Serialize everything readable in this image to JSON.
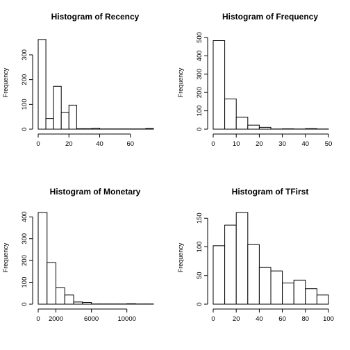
{
  "chart_data": [
    {
      "type": "bar",
      "title": "Histogram of Recency",
      "ylabel": "Frequency",
      "xlabel": "",
      "bins": [
        [
          0,
          5
        ],
        [
          5,
          10
        ],
        [
          10,
          15
        ],
        [
          15,
          20
        ],
        [
          20,
          25
        ],
        [
          25,
          30
        ],
        [
          30,
          35
        ],
        [
          35,
          40
        ],
        [
          40,
          45
        ],
        [
          45,
          50
        ],
        [
          50,
          55
        ],
        [
          55,
          60
        ],
        [
          60,
          65
        ],
        [
          65,
          70
        ],
        [
          70,
          75
        ]
      ],
      "values": [
        362,
        43,
        173,
        68,
        97,
        2,
        2,
        4,
        1,
        1,
        1,
        1,
        1,
        1,
        3
      ],
      "xlim": [
        0,
        75
      ],
      "ylim": [
        0,
        370
      ],
      "xticks": [
        0,
        20,
        40,
        60
      ],
      "yticks": [
        0,
        100,
        200,
        300
      ],
      "yaxis_top": 300
    },
    {
      "type": "bar",
      "title": "Histogram of Frequency",
      "ylabel": "Frequency",
      "xlabel": "",
      "bins": [
        [
          0,
          5
        ],
        [
          5,
          10
        ],
        [
          10,
          15
        ],
        [
          15,
          20
        ],
        [
          20,
          25
        ],
        [
          25,
          30
        ],
        [
          30,
          35
        ],
        [
          35,
          40
        ],
        [
          40,
          45
        ],
        [
          45,
          50
        ]
      ],
      "values": [
        483,
        165,
        65,
        22,
        10,
        1,
        2,
        1,
        3,
        1
      ],
      "xlim": [
        0,
        50
      ],
      "ylim": [
        0,
        500
      ],
      "xticks": [
        0,
        10,
        20,
        30,
        40,
        50
      ],
      "yticks": [
        0,
        100,
        200,
        300,
        400,
        500
      ],
      "yaxis_top": 500
    },
    {
      "type": "bar",
      "title": "Histogram of Monetary",
      "ylabel": "Frequency",
      "xlabel": "",
      "bins": [
        [
          0,
          1000
        ],
        [
          1000,
          2000
        ],
        [
          2000,
          3000
        ],
        [
          3000,
          4000
        ],
        [
          4000,
          5000
        ],
        [
          5000,
          6000
        ],
        [
          6000,
          7000
        ],
        [
          7000,
          8000
        ],
        [
          8000,
          9000
        ],
        [
          9000,
          10000
        ],
        [
          10000,
          11000
        ],
        [
          11000,
          12000
        ],
        [
          12000,
          13000
        ]
      ],
      "values": [
        420,
        190,
        75,
        42,
        10,
        8,
        1,
        1,
        1,
        1,
        2,
        1,
        1
      ],
      "xlim": [
        0,
        13000
      ],
      "ylim": [
        0,
        420
      ],
      "xticks": [
        0,
        2000,
        6000,
        10000
      ],
      "yticks": [
        0,
        100,
        200,
        300,
        400
      ],
      "yaxis_top": 400
    },
    {
      "type": "bar",
      "title": "Histogram of TFirst",
      "ylabel": "Frequency",
      "xlabel": "",
      "bins": [
        [
          0,
          10
        ],
        [
          10,
          20
        ],
        [
          20,
          30
        ],
        [
          30,
          40
        ],
        [
          40,
          50
        ],
        [
          50,
          60
        ],
        [
          60,
          70
        ],
        [
          70,
          80
        ],
        [
          80,
          90
        ],
        [
          90,
          100
        ]
      ],
      "values": [
        102,
        138,
        160,
        104,
        64,
        58,
        37,
        42,
        27,
        16
      ],
      "xlim": [
        0,
        100
      ],
      "ylim": [
        0,
        160
      ],
      "xticks": [
        0,
        20,
        40,
        60,
        80,
        100
      ],
      "yticks": [
        0,
        50,
        100,
        150
      ],
      "yaxis_top": 150
    }
  ]
}
